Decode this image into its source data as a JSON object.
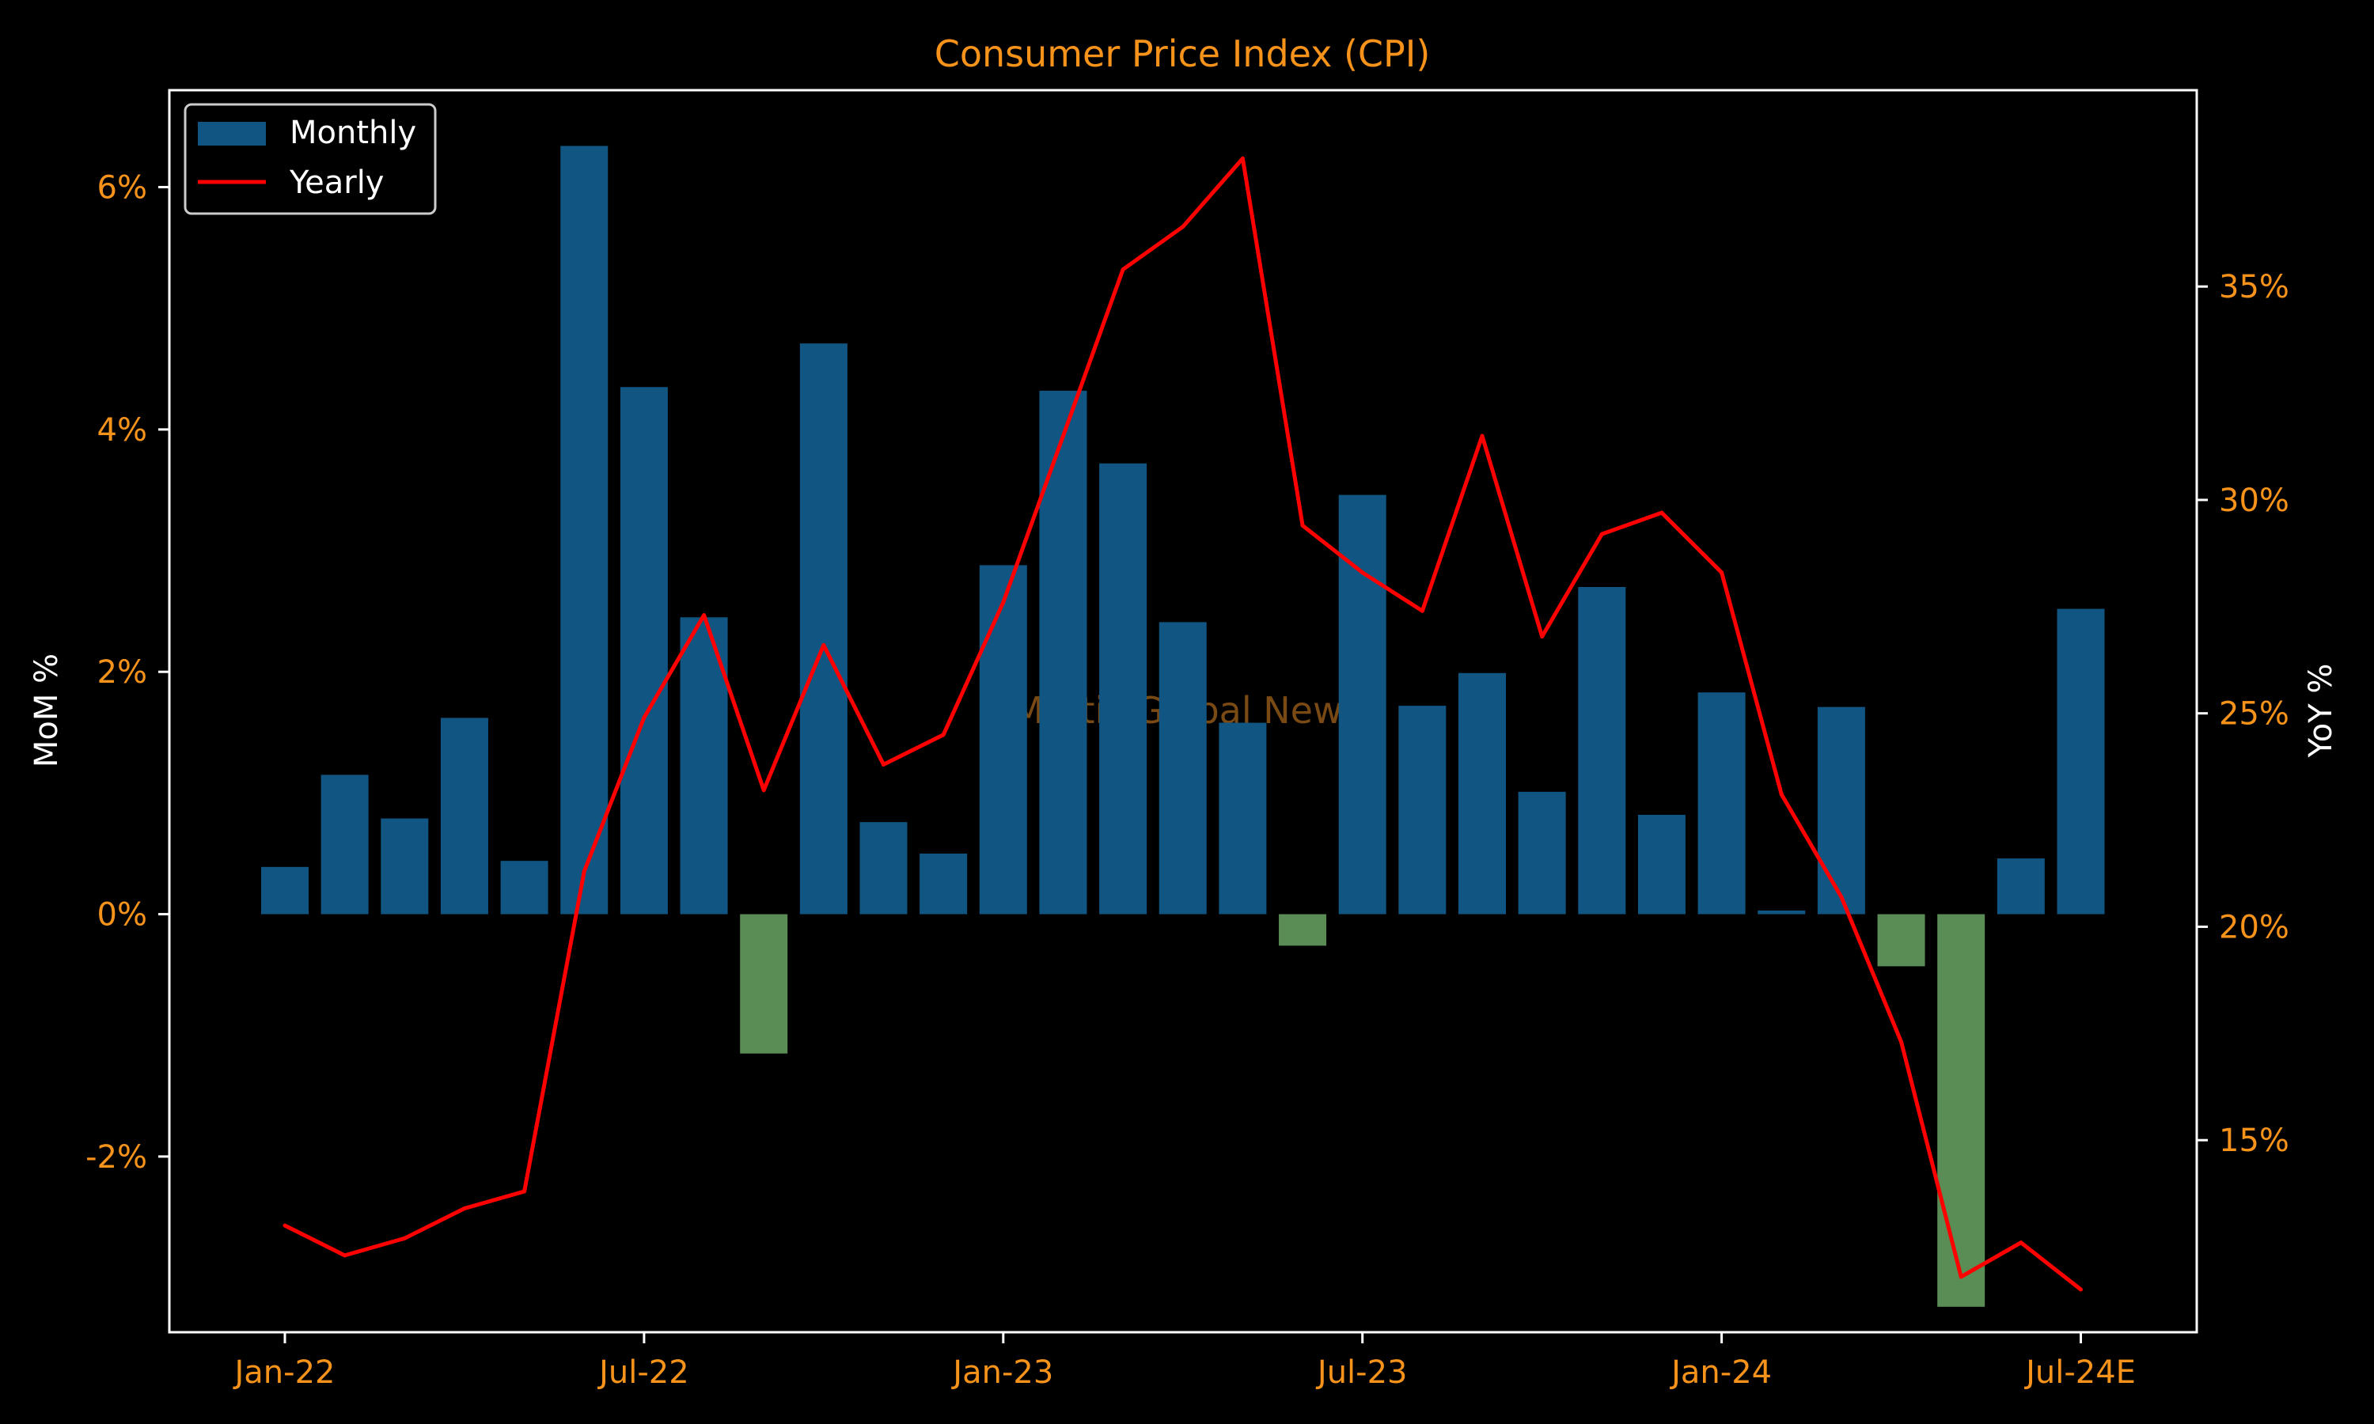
{
  "chart_data": {
    "type": "bar",
    "title": "Consumer Price Index (CPI)",
    "watermark": "Mettis Global News",
    "x_tick_labels": [
      "Jan-22",
      "Jul-22",
      "Jan-23",
      "Jul-23",
      "Jan-24",
      "Jul-24E"
    ],
    "x_tick_indices": [
      0,
      6,
      12,
      18,
      24,
      30
    ],
    "categories": [
      "Jan-22",
      "Feb-22",
      "Mar-22",
      "Apr-22",
      "May-22",
      "Jun-22",
      "Jul-22",
      "Aug-22",
      "Sep-22",
      "Oct-22",
      "Nov-22",
      "Dec-22",
      "Jan-23",
      "Feb-23",
      "Mar-23",
      "Apr-23",
      "May-23",
      "Jun-23",
      "Jul-23",
      "Aug-23",
      "Sep-23",
      "Oct-23",
      "Nov-23",
      "Dec-23",
      "Jan-24",
      "Feb-24",
      "Mar-24",
      "Apr-24",
      "May-24",
      "Jun-24",
      "Jul-24E"
    ],
    "left_axis": {
      "label": "MoM %",
      "ylim": [
        -3.45,
        6.8
      ],
      "ticks": [
        -2,
        0,
        2,
        4,
        6
      ],
      "tick_labels": [
        "-2%",
        "0%",
        "2%",
        "4%",
        "6%"
      ]
    },
    "right_axis": {
      "label": "YoY %",
      "ylim": [
        10.5,
        39.6
      ],
      "ticks": [
        15,
        20,
        25,
        30,
        35
      ],
      "tick_labels": [
        "15%",
        "20%",
        "25%",
        "30%",
        "35%"
      ]
    },
    "series": [
      {
        "name": "Monthly",
        "type": "bar",
        "axis": "left",
        "values": [
          0.39,
          1.15,
          0.79,
          1.62,
          0.44,
          6.34,
          4.35,
          2.45,
          -1.15,
          4.71,
          0.76,
          0.5,
          2.88,
          4.32,
          3.72,
          2.41,
          1.58,
          -0.26,
          3.46,
          1.72,
          1.99,
          1.01,
          2.7,
          0.82,
          1.83,
          0.03,
          1.71,
          -0.43,
          -3.24,
          0.46,
          2.52
        ]
      },
      {
        "name": "Yearly",
        "type": "line",
        "axis": "right",
        "values": [
          13.0,
          12.3,
          12.7,
          13.4,
          13.8,
          21.3,
          24.9,
          27.3,
          23.2,
          26.6,
          23.8,
          24.5,
          27.6,
          31.5,
          35.4,
          36.4,
          38.0,
          29.4,
          28.3,
          27.4,
          31.5,
          26.8,
          29.2,
          29.7,
          28.3,
          23.1,
          20.7,
          17.3,
          11.8,
          12.6,
          11.5
        ]
      }
    ],
    "colors": {
      "bar_positive": "#115582",
      "bar_negative": "#5a8c55",
      "line": "#ff0000",
      "accent": "#f7931a",
      "background": "#000000",
      "axes": "#ffffff"
    },
    "legend": {
      "placement": "top-left",
      "entries": [
        "Monthly",
        "Yearly"
      ]
    },
    "grid": false
  }
}
